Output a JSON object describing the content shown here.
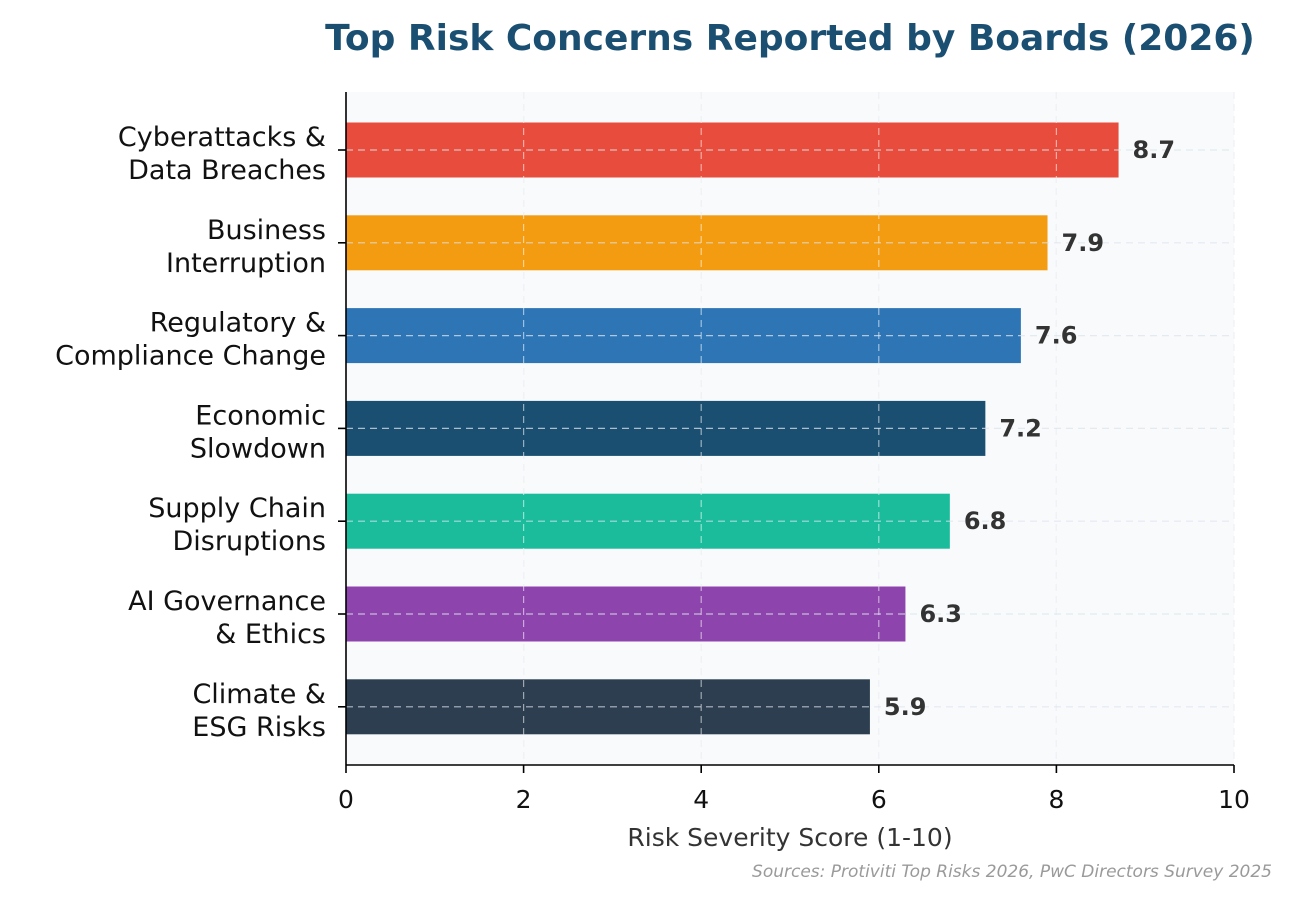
{
  "chart_data": {
    "type": "bar",
    "orientation": "horizontal",
    "title": "Top Risk Concerns Reported by Boards (2026)",
    "xlabel": "Risk Severity Score (1-10)",
    "ylabel": "",
    "xlim": [
      0,
      10
    ],
    "xticks": [
      0,
      2,
      4,
      6,
      8,
      10
    ],
    "grid": true,
    "categories": [
      [
        "Cyberattacks &",
        "Data Breaches"
      ],
      [
        "Business",
        "Interruption"
      ],
      [
        "Regulatory &",
        "Compliance Change"
      ],
      [
        "Economic",
        "Slowdown"
      ],
      [
        "Supply Chain",
        "Disruptions"
      ],
      [
        "AI Governance",
        "& Ethics"
      ],
      [
        "Climate &",
        "ESG Risks"
      ]
    ],
    "values": [
      8.7,
      7.9,
      7.6,
      7.2,
      6.8,
      6.3,
      5.9
    ],
    "value_labels": [
      "8.7",
      "7.9",
      "7.6",
      "7.2",
      "6.8",
      "6.3",
      "5.9"
    ],
    "colors": [
      "#e74c3c",
      "#f39c12",
      "#2e75b6",
      "#1b4f72",
      "#1abc9c",
      "#8e44ad",
      "#2c3e50"
    ],
    "source": "Sources: Protiviti Top Risks 2026, PwC Directors Survey 2025"
  }
}
